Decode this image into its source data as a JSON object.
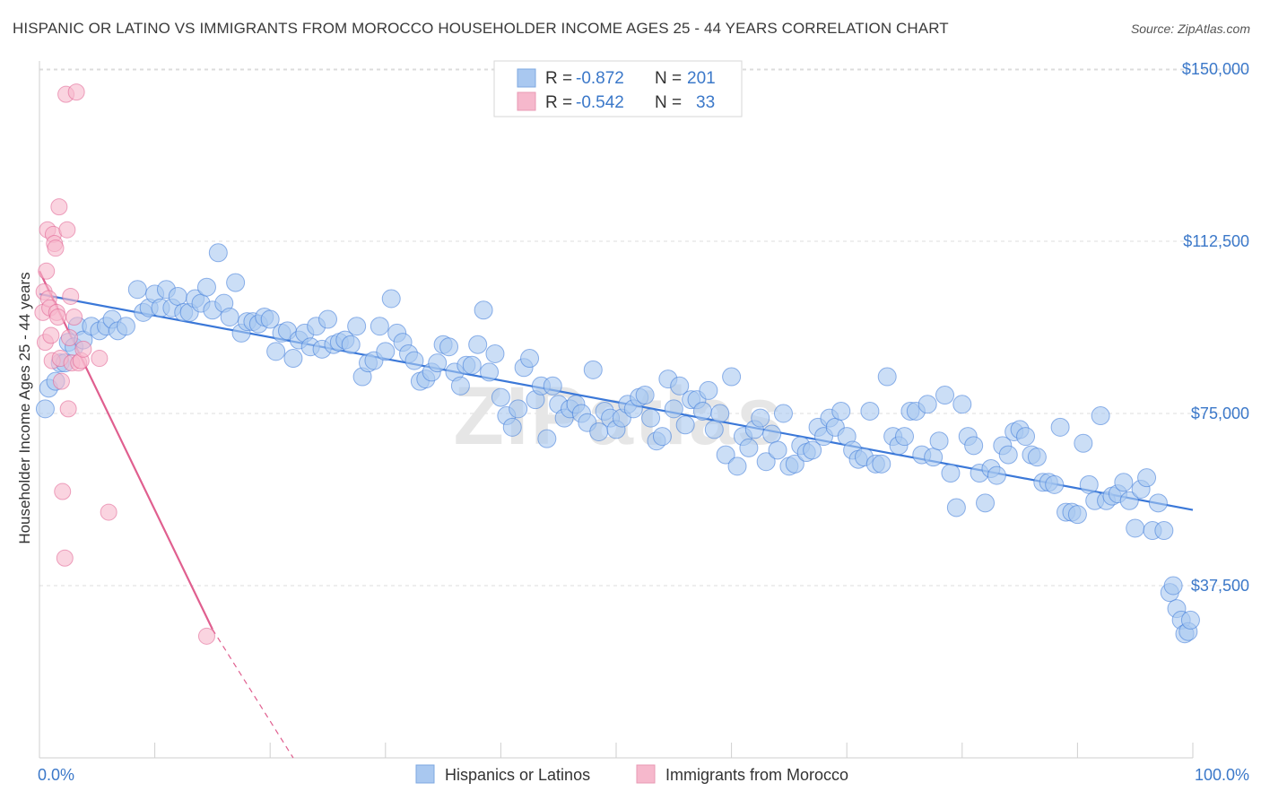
{
  "header": {
    "title": "HISPANIC OR LATINO VS IMMIGRANTS FROM MOROCCO HOUSEHOLDER INCOME AGES 25 - 44 YEARS CORRELATION CHART",
    "source": "Source: ZipAtlas.com"
  },
  "chart_data": {
    "type": "scatter",
    "ylabel": "Householder Income Ages 25 - 44 years",
    "xlabel": "",
    "xlim": [
      0,
      100
    ],
    "ylim": [
      0,
      155000
    ],
    "x_tick_labels": [
      "0.0%",
      "100.0%"
    ],
    "y_ticks": [
      {
        "value": 37500,
        "label": "$37,500"
      },
      {
        "value": 75000,
        "label": "$75,000"
      },
      {
        "value": 112500,
        "label": "$112,500"
      },
      {
        "value": 150000,
        "label": "$150,000"
      }
    ],
    "grid": true,
    "watermark": "ZIPatlas",
    "stats": {
      "blue": {
        "r_label": "R =",
        "r_value": "-0.872",
        "n_label": "N =",
        "n_value": "201"
      },
      "pink": {
        "r_label": "R =",
        "r_value": "-0.542",
        "n_label": "N =",
        "n_value": "33"
      }
    },
    "series": [
      {
        "name": "Hispanics or Latinos",
        "color": "#3b78d8",
        "fill": "#a9c8f0",
        "trend": {
          "x0": 0,
          "y0": 101000,
          "x1": 100,
          "y1": 54000
        },
        "points": [
          [
            0.5,
            76000
          ],
          [
            0.8,
            80500
          ],
          [
            1.4,
            82000
          ],
          [
            1.8,
            86000
          ],
          [
            2.2,
            86000
          ],
          [
            2.5,
            90500
          ],
          [
            3.0,
            89500
          ],
          [
            3.3,
            94000
          ],
          [
            3.8,
            91000
          ],
          [
            4.5,
            94000
          ],
          [
            5.2,
            93000
          ],
          [
            5.8,
            94000
          ],
          [
            6.3,
            95500
          ],
          [
            6.8,
            93000
          ],
          [
            7.5,
            94000
          ],
          [
            8.5,
            102000
          ],
          [
            9.0,
            97000
          ],
          [
            9.5,
            98000
          ],
          [
            10.0,
            101000
          ],
          [
            10.5,
            98000
          ],
          [
            11.0,
            102000
          ],
          [
            11.5,
            98000
          ],
          [
            12.0,
            100500
          ],
          [
            12.5,
            97000
          ],
          [
            13.0,
            97000
          ],
          [
            13.5,
            100000
          ],
          [
            14.0,
            99000
          ],
          [
            14.5,
            102500
          ],
          [
            15.0,
            97500
          ],
          [
            15.5,
            110000
          ],
          [
            16.0,
            99000
          ],
          [
            16.5,
            96000
          ],
          [
            17.0,
            103500
          ],
          [
            17.5,
            92500
          ],
          [
            18.0,
            95000
          ],
          [
            18.5,
            95000
          ],
          [
            19.0,
            94500
          ],
          [
            19.5,
            96000
          ],
          [
            20.0,
            95500
          ],
          [
            20.5,
            88500
          ],
          [
            21.0,
            92500
          ],
          [
            21.5,
            93000
          ],
          [
            22.0,
            87000
          ],
          [
            22.5,
            91000
          ],
          [
            23.0,
            92500
          ],
          [
            23.5,
            89500
          ],
          [
            24.0,
            94000
          ],
          [
            24.5,
            89000
          ],
          [
            25.0,
            95500
          ],
          [
            25.5,
            90000
          ],
          [
            26.0,
            90500
          ],
          [
            26.5,
            91000
          ],
          [
            27.0,
            90000
          ],
          [
            27.5,
            94000
          ],
          [
            28.0,
            83000
          ],
          [
            28.5,
            86000
          ],
          [
            29.0,
            86500
          ],
          [
            29.5,
            94000
          ],
          [
            30.0,
            88500
          ],
          [
            30.5,
            100000
          ],
          [
            31.0,
            92500
          ],
          [
            31.5,
            90500
          ],
          [
            32.0,
            88000
          ],
          [
            32.5,
            86500
          ],
          [
            33.0,
            82000
          ],
          [
            33.5,
            82500
          ],
          [
            34.0,
            84000
          ],
          [
            34.5,
            86000
          ],
          [
            35.0,
            90000
          ],
          [
            35.5,
            89500
          ],
          [
            36.0,
            84000
          ],
          [
            36.5,
            81000
          ],
          [
            37.0,
            85500
          ],
          [
            37.5,
            85500
          ],
          [
            38.0,
            90000
          ],
          [
            38.5,
            97500
          ],
          [
            39.0,
            84000
          ],
          [
            39.5,
            88000
          ],
          [
            40.0,
            78500
          ],
          [
            40.5,
            74500
          ],
          [
            41.0,
            72000
          ],
          [
            41.5,
            76000
          ],
          [
            42.0,
            85000
          ],
          [
            42.5,
            87000
          ],
          [
            43.0,
            78000
          ],
          [
            43.5,
            81000
          ],
          [
            44.0,
            69500
          ],
          [
            44.5,
            81000
          ],
          [
            45.0,
            77000
          ],
          [
            45.5,
            74000
          ],
          [
            46.0,
            76000
          ],
          [
            46.5,
            77000
          ],
          [
            47.0,
            75000
          ],
          [
            47.5,
            73000
          ],
          [
            48.0,
            84500
          ],
          [
            48.5,
            71000
          ],
          [
            49.0,
            75500
          ],
          [
            49.5,
            74000
          ],
          [
            50.0,
            71500
          ],
          [
            50.5,
            74000
          ],
          [
            51.0,
            77000
          ],
          [
            51.5,
            76000
          ],
          [
            52.0,
            78500
          ],
          [
            52.5,
            79000
          ],
          [
            53.0,
            74000
          ],
          [
            53.5,
            69000
          ],
          [
            54.0,
            70000
          ],
          [
            54.5,
            82500
          ],
          [
            55.0,
            76000
          ],
          [
            55.5,
            81000
          ],
          [
            56.0,
            72500
          ],
          [
            56.5,
            78000
          ],
          [
            57.0,
            78000
          ],
          [
            57.5,
            75500
          ],
          [
            58.0,
            80000
          ],
          [
            58.5,
            71500
          ],
          [
            59.0,
            75000
          ],
          [
            59.5,
            66000
          ],
          [
            60.0,
            83000
          ],
          [
            60.5,
            63500
          ],
          [
            61.0,
            70000
          ],
          [
            61.5,
            67500
          ],
          [
            62.0,
            71500
          ],
          [
            62.5,
            74000
          ],
          [
            63.0,
            64500
          ],
          [
            63.5,
            70500
          ],
          [
            64.0,
            67000
          ],
          [
            64.5,
            75000
          ],
          [
            65.0,
            63500
          ],
          [
            65.5,
            64000
          ],
          [
            66.0,
            68000
          ],
          [
            66.5,
            66500
          ],
          [
            67.0,
            67000
          ],
          [
            67.5,
            72000
          ],
          [
            68.0,
            70000
          ],
          [
            68.5,
            74000
          ],
          [
            69.0,
            72000
          ],
          [
            69.5,
            75500
          ],
          [
            70.0,
            70000
          ],
          [
            70.5,
            67000
          ],
          [
            71.0,
            65000
          ],
          [
            71.5,
            65500
          ],
          [
            72.0,
            75500
          ],
          [
            72.5,
            64000
          ],
          [
            73.0,
            64000
          ],
          [
            73.5,
            83000
          ],
          [
            74.0,
            70000
          ],
          [
            74.5,
            68000
          ],
          [
            75.0,
            70000
          ],
          [
            75.5,
            75500
          ],
          [
            76.0,
            75500
          ],
          [
            76.5,
            66000
          ],
          [
            77.0,
            77000
          ],
          [
            77.5,
            65500
          ],
          [
            78.0,
            69000
          ],
          [
            78.5,
            79000
          ],
          [
            79.0,
            62000
          ],
          [
            79.5,
            54500
          ],
          [
            80.0,
            77000
          ],
          [
            80.5,
            70000
          ],
          [
            81.0,
            68000
          ],
          [
            81.5,
            62000
          ],
          [
            82.0,
            55500
          ],
          [
            82.5,
            63000
          ],
          [
            83.0,
            61500
          ],
          [
            83.5,
            68000
          ],
          [
            84.0,
            66000
          ],
          [
            84.5,
            71000
          ],
          [
            85.0,
            71500
          ],
          [
            85.5,
            70000
          ],
          [
            86.0,
            66000
          ],
          [
            86.5,
            65500
          ],
          [
            87.0,
            60000
          ],
          [
            87.5,
            60000
          ],
          [
            88.0,
            59500
          ],
          [
            88.5,
            72000
          ],
          [
            89.0,
            53500
          ],
          [
            89.5,
            53500
          ],
          [
            90.0,
            53000
          ],
          [
            90.5,
            68500
          ],
          [
            91.0,
            59500
          ],
          [
            91.5,
            56000
          ],
          [
            92.0,
            74500
          ],
          [
            92.5,
            56000
          ],
          [
            93.0,
            57000
          ],
          [
            93.5,
            57500
          ],
          [
            94.0,
            60000
          ],
          [
            94.5,
            56000
          ],
          [
            95.0,
            50000
          ],
          [
            95.5,
            58500
          ],
          [
            96.0,
            61000
          ],
          [
            96.5,
            49500
          ],
          [
            97.0,
            55500
          ],
          [
            97.5,
            49500
          ],
          [
            98.0,
            36000
          ],
          [
            98.3,
            37500
          ],
          [
            98.6,
            32500
          ],
          [
            99.0,
            30000
          ],
          [
            99.3,
            27000
          ],
          [
            99.6,
            27500
          ],
          [
            99.8,
            30000
          ]
        ]
      },
      {
        "name": "Immigrants from Morocco",
        "color": "#e05f8f",
        "fill": "#f6b8cc",
        "trend": {
          "x0": 0,
          "y0": 106000,
          "x1": 15,
          "y1": 28000
        },
        "trend_dashed": {
          "x0": 15,
          "y0": 28000,
          "x1": 22,
          "y1": -8000
        },
        "points": [
          [
            0.3,
            97000
          ],
          [
            0.4,
            101500
          ],
          [
            0.5,
            90500
          ],
          [
            0.6,
            106000
          ],
          [
            0.7,
            115000
          ],
          [
            0.8,
            100000
          ],
          [
            0.9,
            98000
          ],
          [
            1.0,
            92000
          ],
          [
            1.1,
            86500
          ],
          [
            1.2,
            114000
          ],
          [
            1.3,
            112000
          ],
          [
            1.4,
            111000
          ],
          [
            1.5,
            97000
          ],
          [
            1.6,
            96000
          ],
          [
            1.7,
            120000
          ],
          [
            1.8,
            87000
          ],
          [
            1.9,
            82000
          ],
          [
            2.0,
            58000
          ],
          [
            2.2,
            43500
          ],
          [
            2.3,
            144500
          ],
          [
            2.4,
            115000
          ],
          [
            2.5,
            76000
          ],
          [
            2.6,
            91500
          ],
          [
            2.7,
            100500
          ],
          [
            2.8,
            86000
          ],
          [
            3.0,
            96000
          ],
          [
            3.2,
            145000
          ],
          [
            3.4,
            86000
          ],
          [
            3.6,
            86500
          ],
          [
            3.8,
            89000
          ],
          [
            5.2,
            87000
          ],
          [
            6.0,
            53500
          ],
          [
            14.5,
            26500
          ]
        ]
      }
    ]
  },
  "legend": {
    "items": [
      {
        "label": "Hispanics or Latinos",
        "color": "#a9c8f0"
      },
      {
        "label": "Immigrants from Morocco",
        "color": "#f6b8cc"
      }
    ]
  }
}
